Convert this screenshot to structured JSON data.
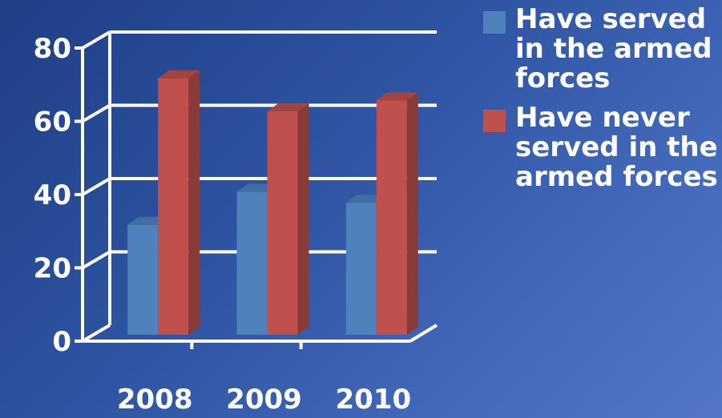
{
  "chart_data": {
    "type": "bar",
    "categories": [
      "2008",
      "2009",
      "2010"
    ],
    "series": [
      {
        "name": "Have served in the armed forces",
        "values": [
          30,
          39,
          36
        ],
        "color": "#4f81bd"
      },
      {
        "name": "Have never served in the armed forces",
        "values": [
          70,
          61,
          64
        ],
        "color": "#c0504d"
      }
    ],
    "ylim": [
      0,
      80
    ],
    "yticks": [
      "0",
      "20",
      "40",
      "60",
      "80"
    ],
    "grid": true,
    "legend": "right",
    "style": "3d-clustered-column"
  },
  "legend": {
    "items": [
      {
        "text": "Have served\nin the armed\nforces"
      },
      {
        "text": "Have never\nserved in the\narmed forces"
      }
    ]
  }
}
